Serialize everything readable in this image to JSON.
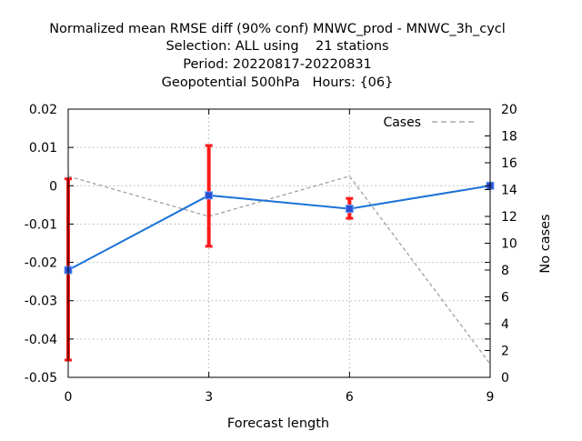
{
  "chart_data": {
    "type": "line",
    "title_lines": [
      "Normalized mean RMSE diff (90% conf) MNWC_prod - MNWC_3h_cycl",
      "Selection: ALL using    21 stations",
      "Period: 20220817-20220831",
      "Geopotential 500hPa   Hours: {06}"
    ],
    "xlabel": "Forecast length",
    "ylabel": "",
    "y2label": "No cases",
    "xlim": [
      0,
      9
    ],
    "ylim": [
      -0.05,
      0.02
    ],
    "y2lim": [
      0,
      20
    ],
    "xticks": [
      0,
      3,
      6,
      9
    ],
    "yticks": [
      -0.05,
      -0.04,
      -0.03,
      -0.02,
      -0.01,
      0,
      0.01,
      0.02
    ],
    "ytick_labels": [
      "-0.05",
      "-0.04",
      "-0.03",
      "-0.02",
      "-0.01",
      "0",
      "0.01",
      "0.02"
    ],
    "y2ticks": [
      0,
      2,
      4,
      6,
      8,
      10,
      12,
      14,
      16,
      18,
      20
    ],
    "grid": true,
    "legend": {
      "position": "top-right",
      "entries": [
        "Cases"
      ]
    },
    "series": [
      {
        "name": "Normalized mean RMSE diff",
        "axis": "y",
        "color": "#1a72d6",
        "marker_color": "#2a4fd0",
        "x": [
          0,
          3,
          6,
          9
        ],
        "values": [
          -0.022,
          -0.0025,
          -0.006,
          0.0
        ],
        "error_low": [
          -0.0455,
          -0.0158,
          -0.0085,
          0.0
        ],
        "error_high": [
          0.0018,
          0.0105,
          -0.0033,
          0.0
        ],
        "error_color": "#ff1a1a"
      },
      {
        "name": "Cases",
        "axis": "y2",
        "color": "#999999",
        "dashed": true,
        "x": [
          0,
          3,
          6,
          9
        ],
        "values": [
          15,
          12,
          15,
          1
        ]
      }
    ]
  }
}
